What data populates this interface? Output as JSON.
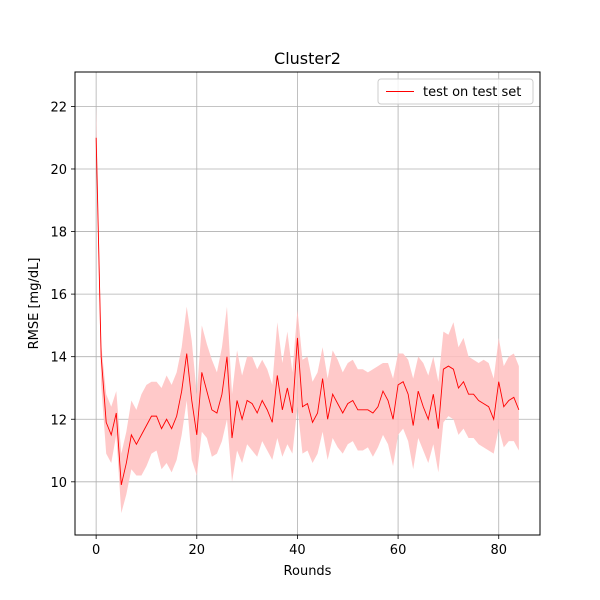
{
  "chart_data": {
    "type": "line",
    "title": "Cluster2",
    "xlabel": "Rounds",
    "ylabel": "RMSE [mg/dL]",
    "xlim": [
      -4.2,
      88.2
    ],
    "ylim": [
      8.3,
      23.1
    ],
    "xticks": [
      0,
      20,
      40,
      60,
      80
    ],
    "yticks": [
      10,
      12,
      14,
      16,
      18,
      20,
      22
    ],
    "grid": true,
    "legend_position": "top-right",
    "colors": {
      "line": "#ff0000",
      "band": "#ffc0c0"
    },
    "series": [
      {
        "name": "test on test set",
        "x": [
          0,
          1,
          2,
          3,
          4,
          5,
          6,
          7,
          8,
          9,
          10,
          11,
          12,
          13,
          14,
          15,
          16,
          17,
          18,
          19,
          20,
          21,
          22,
          23,
          24,
          25,
          26,
          27,
          28,
          29,
          30,
          31,
          32,
          33,
          34,
          35,
          36,
          37,
          38,
          39,
          40,
          41,
          42,
          43,
          44,
          45,
          46,
          47,
          48,
          49,
          50,
          51,
          52,
          53,
          54,
          55,
          56,
          57,
          58,
          59,
          60,
          61,
          62,
          63,
          64,
          65,
          66,
          67,
          68,
          69,
          70,
          71,
          72,
          73,
          74,
          75,
          76,
          77,
          78,
          79,
          80,
          81,
          82,
          83,
          84
        ],
        "y": [
          21.0,
          14.0,
          11.9,
          11.5,
          12.2,
          9.9,
          10.6,
          11.5,
          11.2,
          11.5,
          11.8,
          12.1,
          12.1,
          11.7,
          12.0,
          11.7,
          12.1,
          12.9,
          14.1,
          12.6,
          11.5,
          13.5,
          12.9,
          12.3,
          12.2,
          12.8,
          14.0,
          11.4,
          12.6,
          12.0,
          12.6,
          12.5,
          12.2,
          12.6,
          12.3,
          11.9,
          13.4,
          12.3,
          13.0,
          12.2,
          14.6,
          12.4,
          12.5,
          11.9,
          12.2,
          13.3,
          12.0,
          12.8,
          12.5,
          12.2,
          12.5,
          12.6,
          12.3,
          12.3,
          12.3,
          12.2,
          12.4,
          12.9,
          12.6,
          12.0,
          13.1,
          13.2,
          12.8,
          11.8,
          12.9,
          12.4,
          12.0,
          12.8,
          11.7,
          13.6,
          13.7,
          13.6,
          13.0,
          13.2,
          12.8,
          12.8,
          12.6,
          12.5,
          12.4,
          12.0,
          13.2,
          12.4,
          12.6,
          12.7,
          12.3
        ],
        "lower": [
          21.0,
          13.1,
          10.9,
          10.6,
          11.5,
          9.0,
          9.6,
          10.4,
          10.2,
          10.2,
          10.5,
          10.9,
          11.0,
          10.4,
          10.6,
          10.3,
          10.7,
          11.5,
          12.6,
          10.7,
          10.2,
          11.6,
          11.4,
          10.8,
          10.9,
          11.3,
          12.0,
          10.0,
          11.0,
          10.6,
          11.2,
          11.0,
          10.8,
          11.3,
          11.0,
          10.7,
          11.4,
          10.8,
          11.2,
          10.9,
          12.4,
          10.9,
          11.0,
          10.6,
          10.9,
          11.6,
          10.7,
          11.4,
          11.1,
          10.9,
          11.2,
          11.3,
          11.0,
          11.0,
          11.1,
          10.8,
          11.1,
          11.5,
          11.2,
          10.5,
          11.5,
          11.7,
          11.3,
          10.4,
          11.4,
          11.0,
          10.6,
          11.2,
          10.3,
          11.9,
          12.1,
          12.0,
          11.5,
          11.7,
          11.4,
          11.4,
          11.2,
          11.1,
          11.0,
          10.9,
          11.7,
          11.1,
          11.3,
          11.3,
          11.0
        ],
        "upper": [
          22.0,
          14.4,
          12.8,
          12.4,
          12.9,
          10.9,
          11.6,
          12.6,
          12.3,
          12.8,
          13.1,
          13.2,
          13.2,
          13.0,
          13.4,
          13.1,
          13.5,
          14.3,
          15.6,
          14.5,
          12.8,
          15.0,
          14.4,
          13.9,
          13.5,
          14.3,
          15.6,
          12.8,
          14.2,
          13.4,
          14.0,
          14.0,
          13.6,
          13.9,
          13.6,
          13.1,
          15.1,
          13.8,
          14.8,
          13.5,
          15.5,
          13.9,
          14.0,
          13.2,
          13.5,
          14.3,
          13.3,
          14.2,
          13.9,
          13.5,
          13.8,
          13.9,
          13.6,
          13.6,
          13.5,
          13.6,
          13.7,
          13.8,
          13.8,
          13.3,
          14.1,
          14.1,
          13.9,
          13.3,
          14.0,
          13.8,
          13.4,
          14.0,
          13.2,
          14.8,
          14.7,
          15.1,
          14.3,
          14.6,
          14.0,
          13.9,
          13.8,
          13.9,
          13.8,
          13.3,
          14.6,
          13.7,
          14.0,
          14.1,
          13.7
        ]
      }
    ]
  }
}
